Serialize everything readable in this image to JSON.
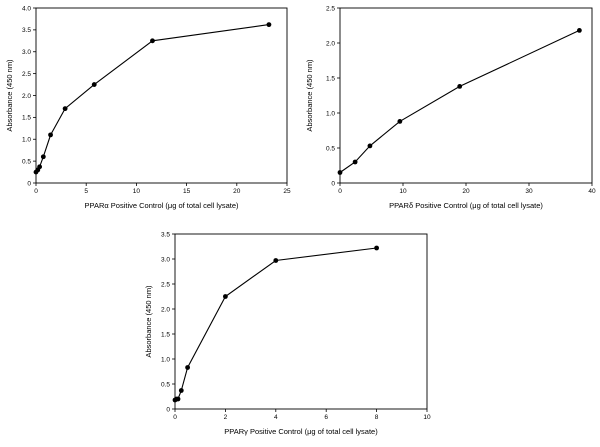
{
  "chart_data": [
    {
      "type": "line",
      "xlabel": "PPARα Positive Control (μg of total cell lysate)",
      "ylabel": "Absorbance (450 nm)",
      "xlim": [
        0,
        25
      ],
      "ylim": [
        0,
        4.0
      ],
      "xticks": [
        "0",
        "5",
        "10",
        "15",
        "20",
        "25"
      ],
      "yticks": [
        "0",
        "0.5",
        "1.0",
        "1.5",
        "2.0",
        "2.5",
        "3.0",
        "3.5",
        "4.0"
      ],
      "xtick_values": [
        0,
        5,
        10,
        15,
        20,
        25
      ],
      "ytick_values": [
        0,
        0.5,
        1.0,
        1.5,
        2.0,
        2.5,
        3.0,
        3.5,
        4.0
      ],
      "x": [
        0,
        0.18,
        0.36,
        0.73,
        1.45,
        2.9,
        5.8,
        11.6,
        23.2
      ],
      "y": [
        0.25,
        0.3,
        0.37,
        0.6,
        1.1,
        1.7,
        2.25,
        3.25,
        3.62
      ]
    },
    {
      "type": "line",
      "xlabel": "PPARδ Positive Control (μg of total cell lysate)",
      "ylabel": "Absorbance (450 nm)",
      "xlim": [
        0,
        40
      ],
      "ylim": [
        0,
        2.5
      ],
      "xticks": [
        "0",
        "10",
        "20",
        "30",
        "40"
      ],
      "yticks": [
        "0",
        "0.5",
        "1.0",
        "1.5",
        "2.0",
        "2.5"
      ],
      "xtick_values": [
        0,
        10,
        20,
        30,
        40
      ],
      "ytick_values": [
        0,
        0.5,
        1.0,
        1.5,
        2.0,
        2.5
      ],
      "x": [
        0,
        2.4,
        4.75,
        9.5,
        19,
        38
      ],
      "y": [
        0.15,
        0.3,
        0.53,
        0.88,
        1.38,
        2.18
      ]
    },
    {
      "type": "line",
      "xlabel": "PPARγ Positive Control (μg of total cell lysate)",
      "ylabel": "Absorbance (450 nm)",
      "xlim": [
        0,
        10
      ],
      "ylim": [
        0,
        3.5
      ],
      "xticks": [
        "0",
        "2",
        "4",
        "6",
        "8",
        "10"
      ],
      "yticks": [
        "0",
        "0.5",
        "1.0",
        "1.5",
        "2.0",
        "2.5",
        "3.0",
        "3.5"
      ],
      "xtick_values": [
        0,
        2,
        4,
        6,
        8,
        10
      ],
      "ytick_values": [
        0,
        0.5,
        1.0,
        1.5,
        2.0,
        2.5,
        3.0,
        3.5
      ],
      "x": [
        0,
        0.06,
        0.12,
        0.25,
        0.5,
        2.0,
        4.0,
        8.0
      ],
      "y": [
        0.18,
        0.2,
        0.2,
        0.37,
        0.83,
        2.25,
        2.97,
        3.22
      ]
    }
  ]
}
